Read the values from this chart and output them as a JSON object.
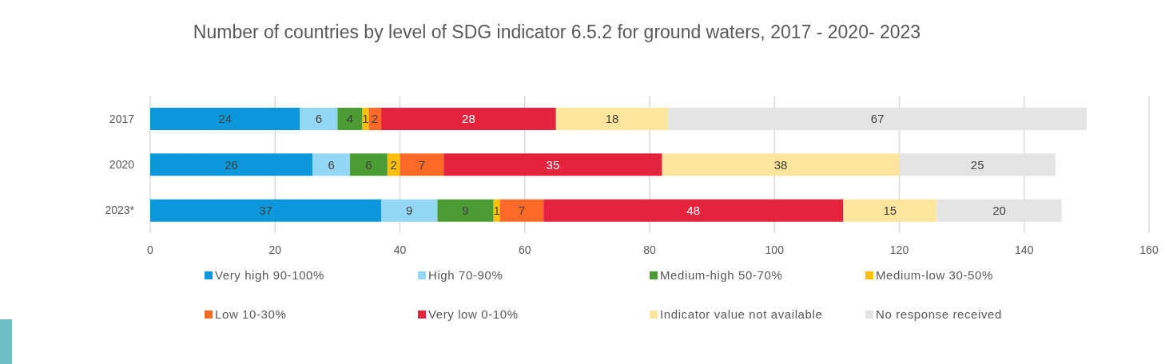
{
  "chart_data": {
    "type": "bar",
    "orientation": "horizontal",
    "stacked": true,
    "title": "Number of countries by level of SDG indicator 6.5.2 for ground waters, 2017 - 2020- 2023",
    "categories": [
      "2017",
      "2020",
      "2023*"
    ],
    "series": [
      {
        "name": "Very high 90-100%",
        "color": "#0b97d9",
        "values": [
          24,
          26,
          37
        ]
      },
      {
        "name": "High 70-90%",
        "color": "#93d6f6",
        "values": [
          6,
          6,
          9
        ]
      },
      {
        "name": "Medium-high 50-70%",
        "color": "#4c9c36",
        "values": [
          4,
          6,
          9
        ]
      },
      {
        "name": "Medium-low 30-50%",
        "color": "#fcc00a",
        "values": [
          1,
          2,
          1
        ]
      },
      {
        "name": "Low 10-30%",
        "color": "#fd6a27",
        "values": [
          2,
          7,
          7
        ]
      },
      {
        "name": "Very low 0-10%",
        "color": "#e4233c",
        "values": [
          28,
          35,
          48
        ]
      },
      {
        "name": "Indicator value not available",
        "color": "#fde59d",
        "values": [
          18,
          38,
          15
        ]
      },
      {
        "name": "No response received",
        "color": "#e4e4e4",
        "values": [
          67,
          25,
          20
        ]
      }
    ],
    "xlim": [
      0,
      160
    ],
    "xticks": [
      0,
      20,
      40,
      60,
      80,
      100,
      120,
      140,
      160
    ],
    "grid": "x",
    "legend": "bottom",
    "data_labels": true
  }
}
